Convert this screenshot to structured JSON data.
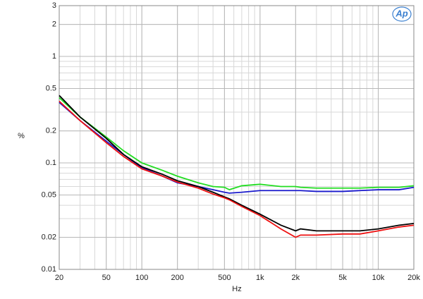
{
  "chart_data": {
    "type": "line",
    "logo": "Ap",
    "x_label": "Hz",
    "y_label": "%",
    "x": [
      20,
      30,
      50,
      70,
      100,
      150,
      200,
      300,
      400,
      500,
      550,
      700,
      1000,
      1500,
      2000,
      2200,
      3000,
      5000,
      7000,
      10000,
      15000,
      20000
    ],
    "series": [
      {
        "name": "green",
        "color": "#22dd22",
        "values": [
          0.41,
          0.27,
          0.175,
          0.13,
          0.1,
          0.085,
          0.075,
          0.065,
          0.06,
          0.059,
          0.056,
          0.061,
          0.063,
          0.06,
          0.06,
          0.059,
          0.058,
          0.058,
          0.058,
          0.059,
          0.059,
          0.061
        ]
      },
      {
        "name": "blue",
        "color": "#1a1acc",
        "values": [
          0.37,
          0.25,
          0.16,
          0.12,
          0.09,
          0.075,
          0.065,
          0.06,
          0.056,
          0.053,
          0.052,
          0.053,
          0.055,
          0.055,
          0.055,
          0.055,
          0.054,
          0.054,
          0.055,
          0.056,
          0.056,
          0.059
        ]
      },
      {
        "name": "black",
        "color": "#000000",
        "values": [
          0.43,
          0.27,
          0.17,
          0.12,
          0.092,
          0.078,
          0.068,
          0.06,
          0.053,
          0.048,
          0.046,
          0.04,
          0.033,
          0.026,
          0.023,
          0.024,
          0.023,
          0.023,
          0.023,
          0.024,
          0.026,
          0.027
        ]
      },
      {
        "name": "red",
        "color": "#ee1111",
        "values": [
          0.38,
          0.25,
          0.155,
          0.115,
          0.088,
          0.075,
          0.066,
          0.058,
          0.051,
          0.047,
          0.045,
          0.039,
          0.032,
          0.024,
          0.02,
          0.021,
          0.021,
          0.0215,
          0.0215,
          0.023,
          0.025,
          0.026
        ]
      }
    ],
    "xlim": [
      20,
      20000
    ],
    "ylim": [
      0.01,
      3
    ],
    "xlog": true,
    "ylog": true,
    "xticks": [
      20,
      50,
      100,
      200,
      500,
      {
        "value": 1000,
        "label": "1k"
      },
      {
        "value": 2000,
        "label": "2k"
      },
      {
        "value": 5000,
        "label": "5k"
      },
      {
        "value": 10000,
        "label": "10k"
      },
      {
        "value": 20000,
        "label": "20k"
      }
    ],
    "yticks": [
      0.01,
      0.02,
      0.05,
      0.1,
      0.2,
      0.5,
      1,
      2,
      3
    ],
    "grid": true,
    "minor_grid": true
  }
}
